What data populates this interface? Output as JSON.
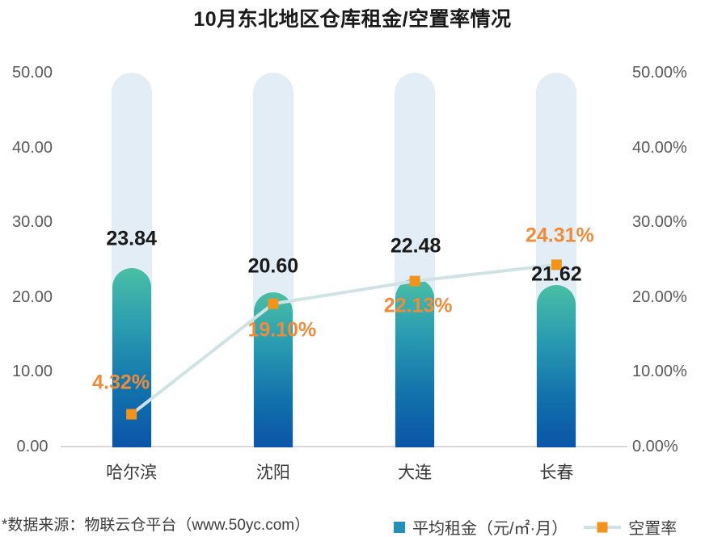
{
  "title": "10月东北地区仓库租金/空置率情况",
  "footer": "*数据来源：物联云仓平台（www.50yc.com）",
  "legend": {
    "rent_label": "平均租金（元/㎡·月）",
    "vacancy_label": "空置率"
  },
  "colors": {
    "bar_gradient_top": "#4abfa4",
    "bar_gradient_bottom": "#0b55a8",
    "pill": "#e3edf6",
    "line": "#cfe2e5",
    "marker": "#f2931b",
    "rent_label_text": "#1a1a1a",
    "vacancy_label_text": "#ee8c3c",
    "legend_square": "#2191b9",
    "axis_text": "#595959",
    "category_text": "#3a3a3a",
    "axis_line": "#d9d9d9"
  },
  "chart_data": {
    "type": "bar",
    "subtype": "bar+line dual-axis",
    "title": "10月东北地区仓库租金/空置率情况",
    "categories": [
      "哈尔滨",
      "沈阳",
      "大连",
      "长春"
    ],
    "series": [
      {
        "name": "平均租金（元/㎡·月）",
        "type": "bar",
        "axis": "left",
        "values": [
          23.84,
          20.6,
          22.48,
          21.62
        ],
        "labels": [
          "23.84",
          "20.60",
          "22.48",
          "21.62"
        ]
      },
      {
        "name": "空置率",
        "type": "line",
        "axis": "right",
        "values": [
          4.32,
          19.1,
          22.13,
          24.31
        ],
        "labels": [
          "4.32%",
          "19.10%",
          "22.13%",
          "24.31%"
        ]
      }
    ],
    "left_axis": {
      "min": 0,
      "max": 50,
      "ticks": [
        "50.00",
        "40.00",
        "30.00",
        "20.00",
        "10.00",
        "0.00"
      ]
    },
    "right_axis": {
      "min": 0,
      "max": 50,
      "ticks": [
        "50.00%",
        "40.00%",
        "30.00%",
        "20.00%",
        "10.00%",
        "0.00%"
      ]
    },
    "grid": false,
    "legend_position": "bottom"
  }
}
